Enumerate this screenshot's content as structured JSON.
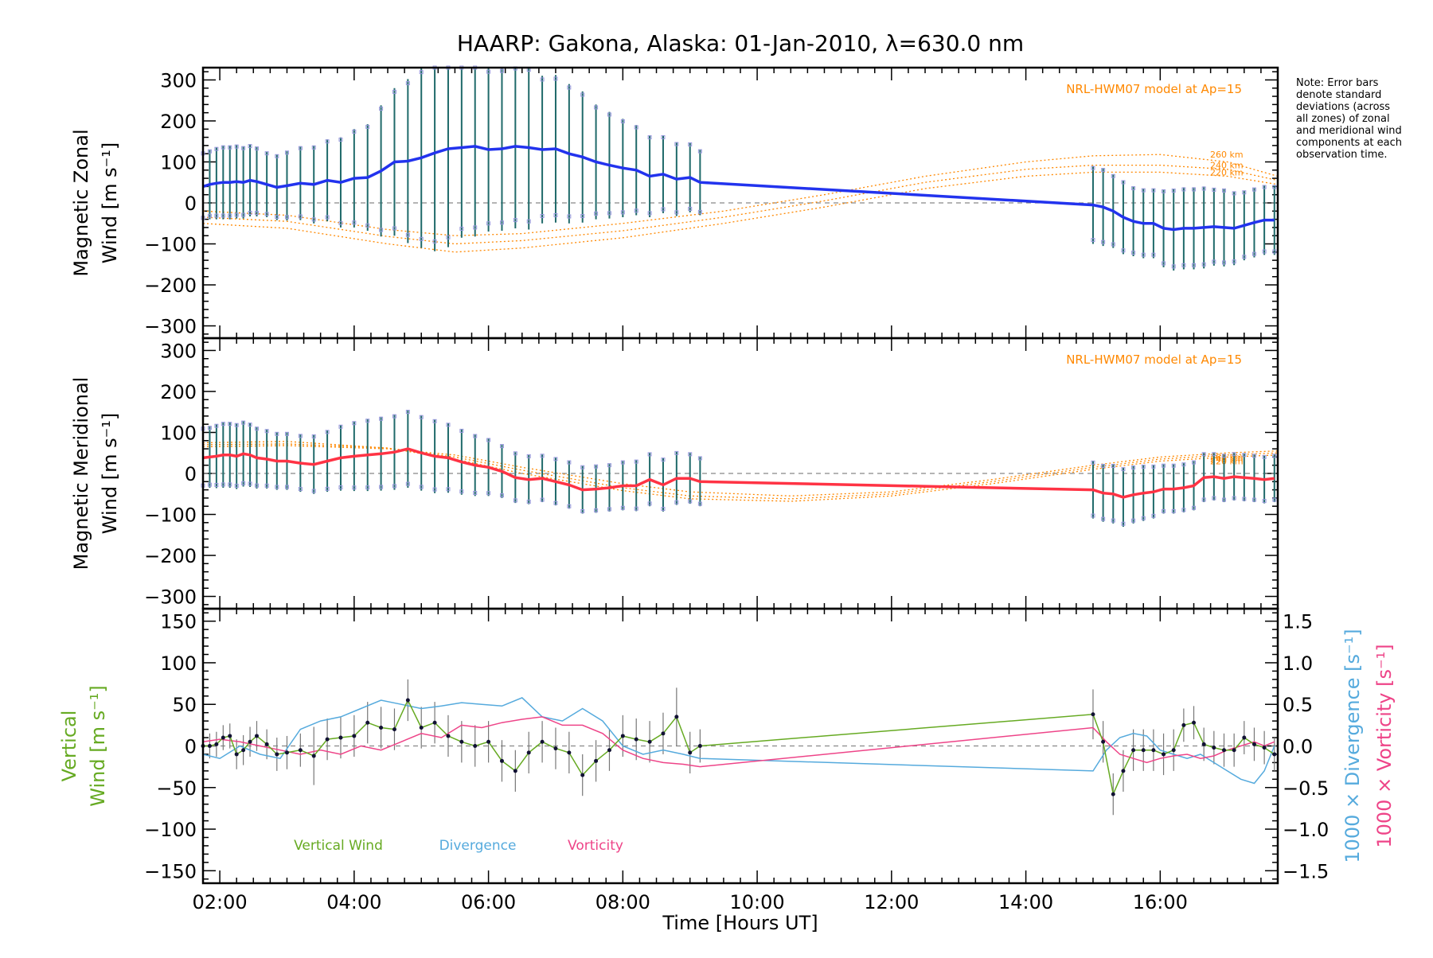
{
  "title": "HAARP: Gakona,  Alaska: 01-Jan-2010, λ=630.0 nm",
  "note": "Note: Error bars denote standard deviations (across all zones) of zonal and meridional wind components at each observation time.",
  "colors": {
    "zonal": "#2233ee",
    "meridional": "#ff3344",
    "vertical": "#66aa22",
    "divergence": "#55aadd",
    "vorticity": "#ee4488",
    "model": "#ff8800",
    "errorbar": "#1f6a6a",
    "zone_markers": "#9999dd"
  },
  "chart_data": [
    {
      "type": "line",
      "panel": "zonal",
      "ylabel_line1": "Magnetic Zonal",
      "ylabel_line2": "Wind [m s⁻¹]",
      "ylim": [
        -330,
        330
      ],
      "yticks": [
        -300,
        -200,
        -100,
        0,
        100,
        200,
        300
      ],
      "xlim": [
        1.75,
        17.75
      ],
      "xticks": [
        2,
        4,
        6,
        8,
        10,
        12,
        14,
        16
      ],
      "xticklabels": [
        "02:00",
        "04:00",
        "06:00",
        "08:00",
        "10:00",
        "12:00",
        "14:00",
        "16:00"
      ],
      "model_label": "NRL-HWM07 model at Ap=15",
      "model_altitudes": [
        "260 km",
        "240 km",
        "220 km"
      ],
      "series": [
        {
          "key": "zonal",
          "x": [
            1.75,
            1.85,
            1.95,
            2.05,
            2.15,
            2.25,
            2.35,
            2.45,
            2.55,
            2.7,
            2.85,
            3.0,
            3.2,
            3.4,
            3.6,
            3.8,
            4.0,
            4.2,
            4.4,
            4.6,
            4.8,
            5.0,
            5.2,
            5.4,
            5.6,
            5.8,
            6.0,
            6.2,
            6.4,
            6.6,
            6.8,
            7.0,
            7.2,
            7.4,
            7.6,
            7.8,
            8.0,
            8.2,
            8.4,
            8.6,
            8.8,
            9.0,
            9.15,
            15.0,
            15.15,
            15.3,
            15.45,
            15.6,
            15.75,
            15.9,
            16.05,
            16.2,
            16.35,
            16.5,
            16.65,
            16.8,
            16.95,
            17.1,
            17.25,
            17.4,
            17.55,
            17.7
          ],
          "y": [
            40,
            45,
            48,
            50,
            50,
            52,
            50,
            55,
            52,
            45,
            38,
            42,
            48,
            45,
            55,
            50,
            60,
            62,
            78,
            100,
            102,
            110,
            122,
            132,
            135,
            138,
            130,
            132,
            138,
            135,
            130,
            132,
            120,
            112,
            100,
            92,
            85,
            80,
            65,
            70,
            58,
            62,
            50,
            -5,
            -10,
            -20,
            -35,
            -45,
            -50,
            -50,
            -62,
            -65,
            -62,
            -62,
            -60,
            -58,
            -60,
            -62,
            -55,
            -48,
            -42,
            -42
          ],
          "err": [
            85,
            85,
            88,
            90,
            90,
            90,
            88,
            88,
            85,
            80,
            80,
            85,
            90,
            95,
            100,
            110,
            120,
            130,
            160,
            180,
            200,
            220,
            240,
            240,
            220,
            220,
            200,
            200,
            200,
            200,
            180,
            180,
            170,
            160,
            140,
            130,
            120,
            110,
            100,
            95,
            90,
            85,
            80,
            95,
            95,
            90,
            90,
            85,
            85,
            85,
            95,
            100,
            100,
            100,
            100,
            95,
            95,
            90,
            85,
            85,
            85,
            85
          ]
        }
      ],
      "model_curves": [
        {
          "name": "260 km",
          "x": [
            1.75,
            3.0,
            4.5,
            5.5,
            6.5,
            8.0,
            9.5,
            11.0,
            12.5,
            14.0,
            15.0,
            16.0,
            17.0,
            17.75
          ],
          "y": [
            -20,
            -30,
            -65,
            -80,
            -75,
            -50,
            -20,
            20,
            65,
            100,
            115,
            118,
            100,
            65
          ]
        },
        {
          "name": "240 km",
          "x": [
            1.75,
            3.0,
            4.5,
            5.5,
            6.5,
            8.0,
            9.5,
            11.0,
            12.5,
            14.0,
            15.0,
            16.0,
            17.0,
            17.75
          ],
          "y": [
            -35,
            -45,
            -82,
            -100,
            -92,
            -68,
            -35,
            5,
            50,
            82,
            92,
            92,
            82,
            55
          ]
        },
        {
          "name": "220 km",
          "x": [
            1.75,
            3.0,
            4.5,
            5.5,
            6.5,
            8.0,
            9.5,
            11.0,
            12.5,
            14.0,
            15.0,
            16.0,
            17.0,
            17.75
          ],
          "y": [
            -50,
            -62,
            -100,
            -120,
            -110,
            -85,
            -50,
            -10,
            35,
            65,
            75,
            75,
            65,
            45
          ]
        }
      ]
    },
    {
      "type": "line",
      "panel": "meridional",
      "ylabel_line1": "Magnetic Meridional",
      "ylabel_line2": "Wind [m s⁻¹]",
      "ylim": [
        -330,
        330
      ],
      "yticks": [
        -300,
        -200,
        -100,
        0,
        100,
        200,
        300
      ],
      "xlim": [
        1.75,
        17.75
      ],
      "model_label": "NRL-HWM07 model at Ap=15",
      "model_altitudes": [
        "260 km",
        "240 km",
        "220 km"
      ],
      "series": [
        {
          "key": "meridional",
          "x": [
            1.75,
            1.85,
            1.95,
            2.05,
            2.15,
            2.25,
            2.35,
            2.45,
            2.55,
            2.7,
            2.85,
            3.0,
            3.2,
            3.4,
            3.6,
            3.8,
            4.0,
            4.2,
            4.4,
            4.6,
            4.8,
            5.0,
            5.2,
            5.4,
            5.6,
            5.8,
            6.0,
            6.2,
            6.4,
            6.6,
            6.8,
            7.0,
            7.2,
            7.4,
            7.6,
            7.8,
            8.0,
            8.2,
            8.4,
            8.6,
            8.8,
            9.0,
            9.15,
            15.0,
            15.15,
            15.3,
            15.45,
            15.6,
            15.75,
            15.9,
            16.05,
            16.2,
            16.35,
            16.5,
            16.65,
            16.8,
            16.95,
            17.1,
            17.25,
            17.4,
            17.55,
            17.7
          ],
          "y": [
            38,
            40,
            42,
            45,
            45,
            42,
            48,
            45,
            38,
            35,
            30,
            30,
            25,
            22,
            30,
            38,
            42,
            45,
            48,
            52,
            60,
            50,
            42,
            38,
            28,
            20,
            15,
            5,
            -10,
            -15,
            -12,
            -20,
            -28,
            -40,
            -38,
            -35,
            -30,
            -30,
            -15,
            -28,
            -12,
            -12,
            -20,
            -40,
            -48,
            -50,
            -58,
            -52,
            -48,
            -45,
            -38,
            -38,
            -35,
            -30,
            -10,
            -8,
            -12,
            -8,
            -10,
            -12,
            -15,
            -12
          ],
          "err": [
            75,
            75,
            78,
            80,
            80,
            80,
            80,
            78,
            75,
            72,
            70,
            70,
            70,
            72,
            75,
            80,
            85,
            88,
            90,
            92,
            95,
            92,
            90,
            85,
            80,
            75,
            70,
            65,
            62,
            60,
            58,
            58,
            58,
            58,
            58,
            58,
            60,
            62,
            65,
            65,
            65,
            62,
            60,
            70,
            70,
            72,
            72,
            70,
            68,
            65,
            60,
            60,
            60,
            60,
            60,
            58,
            58,
            58,
            58,
            58,
            58,
            58
          ]
        }
      ],
      "model_curves": [
        {
          "name": "260 km",
          "x": [
            1.75,
            3.0,
            4.5,
            5.5,
            6.5,
            8.0,
            9.0,
            10.5,
            12.0,
            13.5,
            15.0,
            16.0,
            17.0,
            17.75
          ],
          "y": [
            65,
            68,
            60,
            45,
            15,
            -25,
            -45,
            -55,
            -45,
            -15,
            20,
            40,
            50,
            55
          ]
        },
        {
          "name": "240 km",
          "x": [
            1.75,
            3.0,
            4.5,
            5.5,
            6.5,
            8.0,
            9.0,
            10.5,
            12.0,
            13.5,
            15.0,
            16.0,
            17.0,
            17.75
          ],
          "y": [
            70,
            72,
            62,
            40,
            8,
            -35,
            -55,
            -62,
            -50,
            -20,
            15,
            35,
            45,
            50
          ]
        },
        {
          "name": "220 km",
          "x": [
            1.75,
            3.0,
            4.5,
            5.5,
            6.5,
            8.0,
            9.0,
            10.5,
            12.0,
            13.5,
            15.0,
            16.0,
            17.0,
            17.75
          ],
          "y": [
            75,
            78,
            62,
            35,
            0,
            -42,
            -62,
            -68,
            -55,
            -25,
            10,
            30,
            40,
            45
          ]
        }
      ]
    },
    {
      "type": "line",
      "panel": "vertical",
      "ylabel_line1": "Vertical",
      "ylabel_line2": "Wind [m s⁻¹]",
      "y2label_line1": "1000 × Divergence [s⁻¹]",
      "y2label_line2": "1000 × Vorticity [s⁻¹]",
      "ylim": [
        -165,
        165
      ],
      "yticks": [
        -150,
        -100,
        -50,
        0,
        50,
        100,
        150
      ],
      "y2lim": [
        -1.65,
        1.65
      ],
      "y2ticks": [
        -1.5,
        -1.0,
        -0.5,
        0.0,
        0.5,
        1.0,
        1.5
      ],
      "y2ticklabels": [
        "−1.5",
        "−1.0",
        "−0.5",
        "0.0",
        "0.5",
        "1.0",
        "1.5"
      ],
      "xlim": [
        1.75,
        17.75
      ],
      "xlabel": "Time [Hours UT]",
      "legend": [
        "Vertical Wind",
        "Divergence",
        "Vorticity"
      ],
      "series": [
        {
          "key": "vertical",
          "name": "Vertical Wind",
          "x": [
            1.75,
            1.85,
            1.95,
            2.05,
            2.15,
            2.25,
            2.35,
            2.45,
            2.55,
            2.7,
            2.85,
            3.0,
            3.2,
            3.4,
            3.6,
            3.8,
            4.0,
            4.2,
            4.4,
            4.6,
            4.8,
            5.0,
            5.2,
            5.4,
            5.6,
            5.8,
            6.0,
            6.2,
            6.4,
            6.6,
            6.8,
            7.0,
            7.2,
            7.4,
            7.6,
            7.8,
            8.0,
            8.2,
            8.4,
            8.6,
            8.8,
            9.0,
            9.15,
            15.0,
            15.15,
            15.3,
            15.45,
            15.6,
            15.75,
            15.9,
            16.05,
            16.2,
            16.35,
            16.5,
            16.65,
            16.8,
            16.95,
            17.1,
            17.25,
            17.4,
            17.55,
            17.7
          ],
          "y": [
            0,
            0,
            2,
            10,
            12,
            -10,
            -5,
            5,
            12,
            2,
            -10,
            -8,
            -5,
            -12,
            8,
            10,
            12,
            28,
            22,
            20,
            55,
            22,
            28,
            12,
            5,
            0,
            5,
            -18,
            -30,
            -8,
            5,
            -3,
            -8,
            -35,
            -18,
            -5,
            12,
            8,
            5,
            15,
            35,
            -8,
            0,
            38,
            5,
            -58,
            -30,
            -5,
            -5,
            -5,
            -10,
            -5,
            25,
            28,
            2,
            -2,
            -5,
            -5,
            10,
            2,
            -2,
            -10
          ],
          "err": [
            15,
            15,
            15,
            15,
            15,
            18,
            18,
            18,
            18,
            18,
            20,
            20,
            20,
            35,
            25,
            25,
            25,
            25,
            25,
            25,
            25,
            25,
            25,
            25,
            25,
            25,
            25,
            25,
            25,
            25,
            25,
            25,
            25,
            25,
            25,
            25,
            25,
            25,
            25,
            25,
            35,
            25,
            20,
            30,
            25,
            25,
            25,
            25,
            25,
            25,
            25,
            25,
            20,
            20,
            20,
            20,
            20,
            20,
            20,
            20,
            20,
            20
          ]
        },
        {
          "key": "divergence",
          "name": "Divergence",
          "axis": "right",
          "x": [
            1.75,
            2.0,
            2.3,
            2.6,
            2.9,
            3.2,
            3.5,
            3.8,
            4.1,
            4.4,
            4.7,
            5.0,
            5.3,
            5.6,
            5.9,
            6.2,
            6.5,
            6.8,
            7.1,
            7.4,
            7.7,
            8.0,
            8.3,
            8.6,
            8.9,
            9.15,
            15.0,
            15.2,
            15.4,
            15.6,
            15.8,
            16.0,
            16.2,
            16.4,
            16.6,
            16.8,
            17.0,
            17.2,
            17.4,
            17.55,
            17.7
          ],
          "y": [
            -0.1,
            -0.15,
            0.0,
            -0.1,
            -0.15,
            0.2,
            0.3,
            0.35,
            0.45,
            0.55,
            0.5,
            0.45,
            0.48,
            0.52,
            0.5,
            0.48,
            0.58,
            0.35,
            0.3,
            0.45,
            0.3,
            0.0,
            -0.1,
            -0.05,
            -0.1,
            -0.15,
            -0.3,
            -0.05,
            0.1,
            0.15,
            0.12,
            -0.05,
            -0.1,
            -0.15,
            -0.1,
            -0.2,
            -0.3,
            -0.4,
            -0.45,
            -0.3,
            0.0
          ]
        },
        {
          "key": "vorticity",
          "name": "Vorticity",
          "axis": "right",
          "x": [
            1.75,
            2.0,
            2.3,
            2.6,
            2.9,
            3.2,
            3.5,
            3.8,
            4.1,
            4.4,
            4.7,
            5.0,
            5.3,
            5.6,
            5.9,
            6.2,
            6.5,
            6.8,
            7.1,
            7.4,
            7.7,
            8.0,
            8.3,
            8.6,
            8.9,
            9.15,
            15.0,
            15.2,
            15.4,
            15.6,
            15.8,
            16.0,
            16.2,
            16.4,
            16.6,
            16.8,
            17.0,
            17.2,
            17.4,
            17.55,
            17.7
          ],
          "y": [
            0.05,
            0.08,
            0.05,
            0.0,
            -0.05,
            -0.1,
            -0.05,
            -0.1,
            0.0,
            -0.05,
            0.05,
            0.15,
            0.1,
            0.25,
            0.22,
            0.28,
            0.32,
            0.35,
            0.25,
            0.25,
            0.15,
            -0.05,
            -0.15,
            -0.2,
            -0.22,
            -0.25,
            0.22,
            0.05,
            -0.1,
            -0.15,
            -0.2,
            -0.15,
            -0.12,
            -0.1,
            -0.15,
            -0.12,
            -0.05,
            0.0,
            0.05,
            0.0,
            0.05
          ]
        }
      ]
    }
  ]
}
